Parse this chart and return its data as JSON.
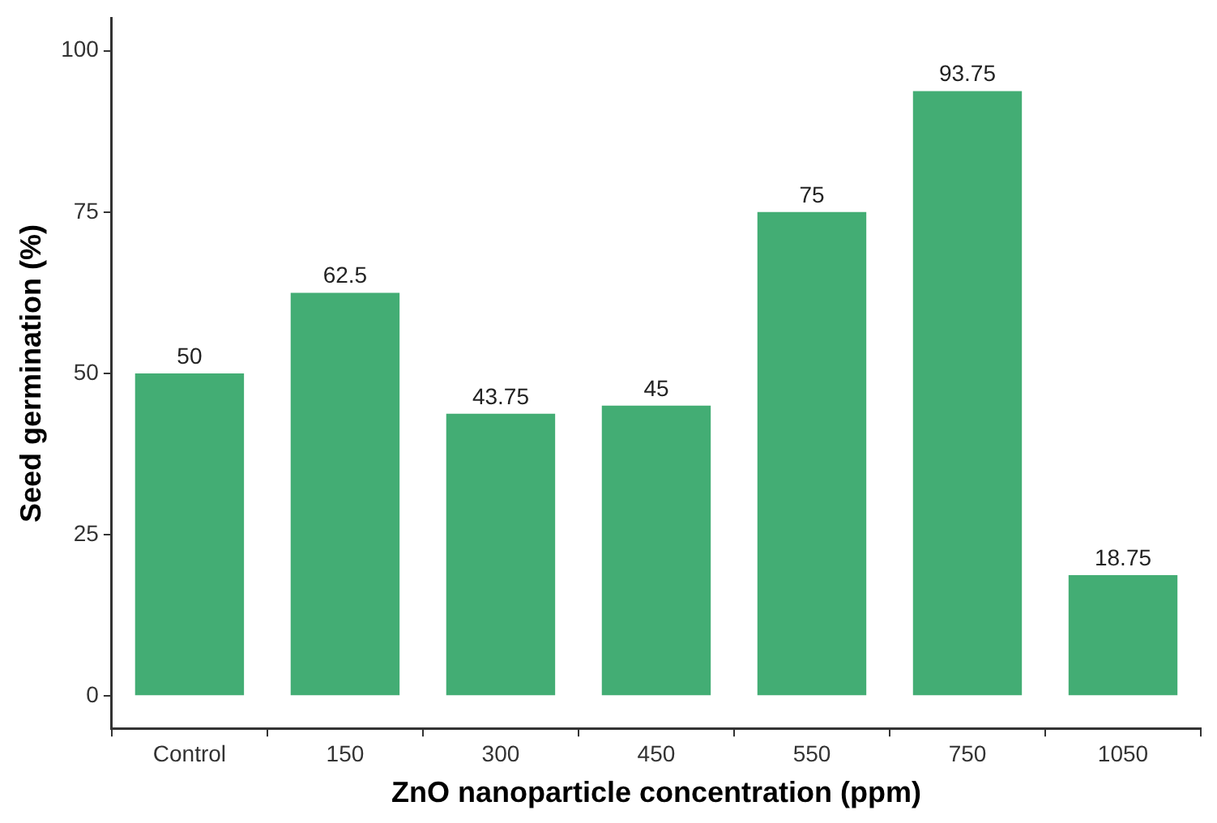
{
  "chart_data": {
    "type": "bar",
    "xlabel": "ZnO nanoparticle concentration (ppm)",
    "ylabel": "Seed germination (%)",
    "categories": [
      "Control",
      "150",
      "300",
      "450",
      "550",
      "750",
      "1050"
    ],
    "values": [
      50,
      62.5,
      43.75,
      45,
      75,
      93.75,
      18.75
    ],
    "color": "#43ad74",
    "ylim": [
      -5,
      105
    ],
    "yticks": [
      0,
      25,
      50,
      75,
      100
    ],
    "grid": false,
    "data_labels": true
  }
}
